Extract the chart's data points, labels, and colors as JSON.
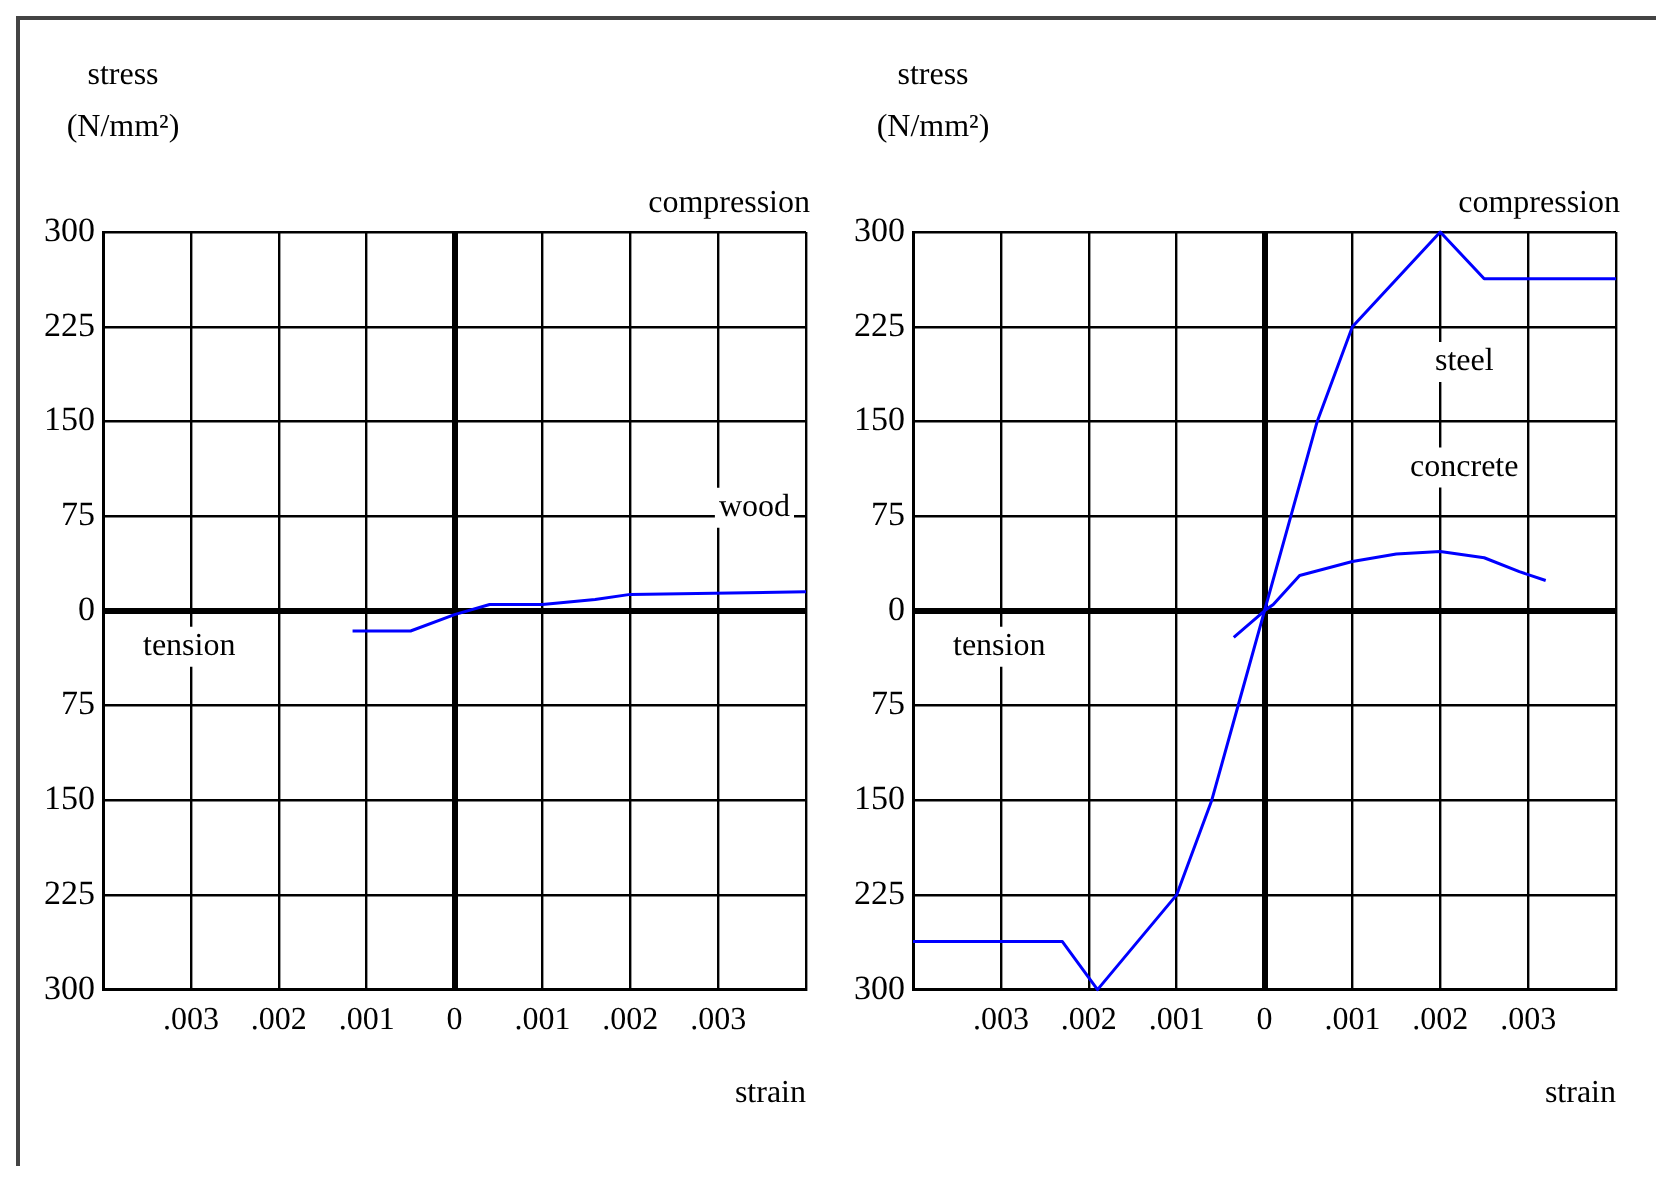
{
  "chart_data": [
    {
      "type": "line",
      "xlabel": "strain",
      "ylabel": "stress\n(N/mm²)",
      "annotations": [
        "compression",
        "tension"
      ],
      "grid": true,
      "legend": false,
      "xlim": [
        -0.004,
        0.004
      ],
      "ylim": [
        -300,
        300
      ],
      "xticks": [
        {
          "value": -0.004,
          "label": null
        },
        {
          "value": -0.003,
          "label": ".003"
        },
        {
          "value": -0.002,
          "label": ".002"
        },
        {
          "value": -0.001,
          "label": ".001"
        },
        0,
        {
          "value": 0.001,
          "label": ".001"
        },
        {
          "value": 0.002,
          "label": ".002"
        },
        {
          "value": 0.003,
          "label": ".003"
        },
        {
          "value": 0.004,
          "label": null
        }
      ],
      "yticks": [
        {
          "value": -300,
          "label": "300"
        },
        {
          "value": -225,
          "label": "225"
        },
        {
          "value": -150,
          "label": "150"
        },
        {
          "value": -75,
          "label": "75"
        },
        0,
        75,
        150,
        225,
        300
      ],
      "series": [
        {
          "name": "wood",
          "color": "#0000ff",
          "x": [
            -0.00116,
            -0.0005,
            0,
            0.0004,
            0.001,
            0.0016,
            0.002,
            0.004
          ],
          "values": [
            -16,
            -16,
            -3,
            5,
            5,
            9,
            13,
            15
          ]
        }
      ]
    },
    {
      "type": "line",
      "xlabel": "strain",
      "ylabel": "stress\n(N/mm²)",
      "annotations": [
        "compression",
        "tension"
      ],
      "grid": true,
      "legend": false,
      "xlim": [
        -0.004,
        0.004
      ],
      "ylim": [
        -300,
        300
      ],
      "xticks": [
        {
          "value": -0.004,
          "label": null
        },
        {
          "value": -0.003,
          "label": ".003"
        },
        {
          "value": -0.002,
          "label": ".002"
        },
        {
          "value": -0.001,
          "label": ".001"
        },
        0,
        {
          "value": 0.001,
          "label": ".001"
        },
        {
          "value": 0.002,
          "label": ".002"
        },
        {
          "value": 0.003,
          "label": ".003"
        },
        {
          "value": 0.004,
          "label": null
        }
      ],
      "yticks": [
        {
          "value": -300,
          "label": "300"
        },
        {
          "value": -225,
          "label": "225"
        },
        {
          "value": -150,
          "label": "150"
        },
        {
          "value": -75,
          "label": "75"
        },
        0,
        75,
        150,
        225,
        300
      ],
      "series": [
        {
          "name": "steel",
          "color": "#0000ff",
          "x": [
            -0.004,
            -0.0023,
            -0.0019,
            -0.001,
            -0.0006,
            -0.0003,
            0,
            0.0003,
            0.0006,
            0.001,
            0.002,
            0.0025,
            0.004
          ],
          "values": [
            -262,
            -262,
            -300,
            -225,
            -150,
            -75,
            0,
            75,
            150,
            225,
            300,
            263,
            263
          ]
        },
        {
          "name": "concrete",
          "color": "#0000ff",
          "x": [
            -0.00035,
            0,
            0.0001,
            0.0004,
            0.001,
            0.0015,
            0.002,
            0.0025,
            0.0029,
            0.0032
          ],
          "values": [
            -21,
            0,
            5,
            28,
            39,
            45,
            47,
            42,
            31,
            24
          ]
        }
      ]
    }
  ]
}
